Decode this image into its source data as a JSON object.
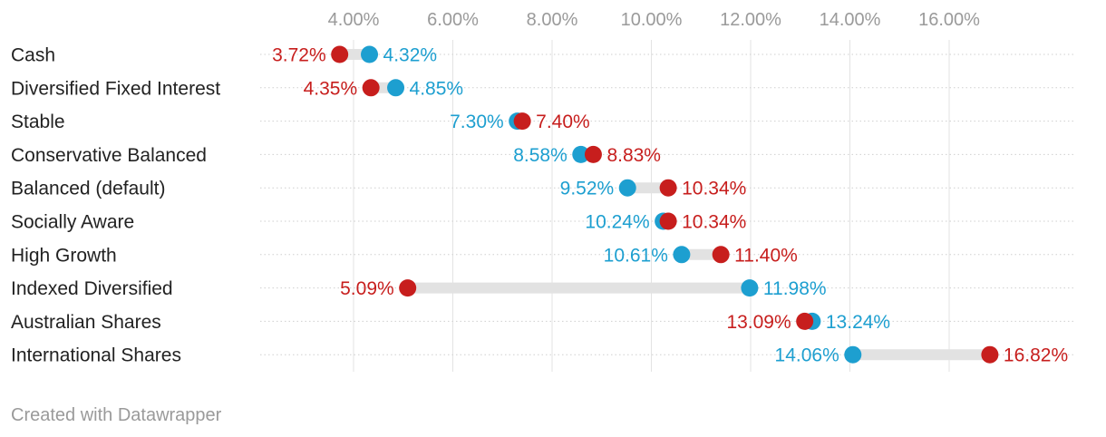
{
  "chart_data": {
    "type": "dot",
    "xlim": [
      2.0,
      18.0
    ],
    "x_ticks": [
      4,
      6,
      8,
      10,
      12,
      14,
      16
    ],
    "x_tick_labels": [
      "4.00%",
      "6.00%",
      "8.00%",
      "10.00%",
      "12.00%",
      "14.00%",
      "16.00%"
    ],
    "grid": "vertical",
    "categories": [
      "Cash",
      "Diversified Fixed Interest",
      "Stable",
      "Conservative Balanced",
      "Balanced (default)",
      "Socially Aware",
      "High Growth",
      "Indexed Diversified",
      "Australian Shares",
      "International Shares"
    ],
    "series": [
      {
        "color": "#c71e1d",
        "values": [
          3.72,
          4.35,
          7.4,
          8.83,
          10.34,
          10.34,
          11.4,
          5.09,
          13.09,
          16.82
        ],
        "labels": [
          "3.72%",
          "4.35%",
          "7.40%",
          "8.83%",
          "10.34%",
          "10.34%",
          "11.40%",
          "5.09%",
          "13.09%",
          "16.82%"
        ]
      },
      {
        "color": "#1d9fd0",
        "values": [
          4.32,
          4.85,
          7.3,
          8.58,
          9.52,
          10.24,
          10.61,
          11.98,
          13.24,
          14.06
        ],
        "labels": [
          "4.32%",
          "4.85%",
          "7.30%",
          "8.58%",
          "9.52%",
          "10.24%",
          "10.61%",
          "11.98%",
          "13.24%",
          "14.06%"
        ]
      }
    ]
  },
  "colors": {
    "red": "#c71e1d",
    "blue": "#1d9fd0",
    "connector": "#e2e2e2",
    "grid": "#e3e3e3",
    "row_line": "#cfcfcf",
    "tick_text": "#9a9a9a",
    "label_text": "#222222"
  },
  "footer": {
    "credit": "Created with Datawrapper"
  }
}
